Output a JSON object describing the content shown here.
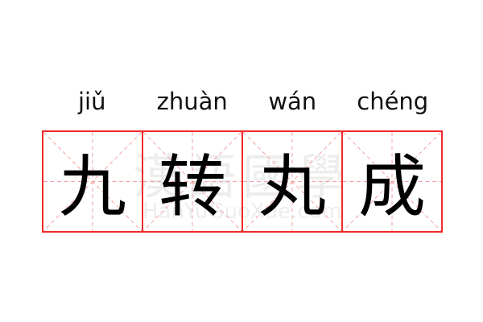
{
  "pinyin": [
    "jiǔ",
    "zhuàn",
    "wán",
    "chéng"
  ],
  "characters": [
    "九",
    "转",
    "丸",
    "成"
  ],
  "watermark": {
    "chinese": "漢語國學",
    "latin": "HanYuGuoXue.com"
  },
  "colors": {
    "grid_border": "#f02a2a",
    "guide_lines": "#f5a0a0",
    "text": "#000000"
  }
}
